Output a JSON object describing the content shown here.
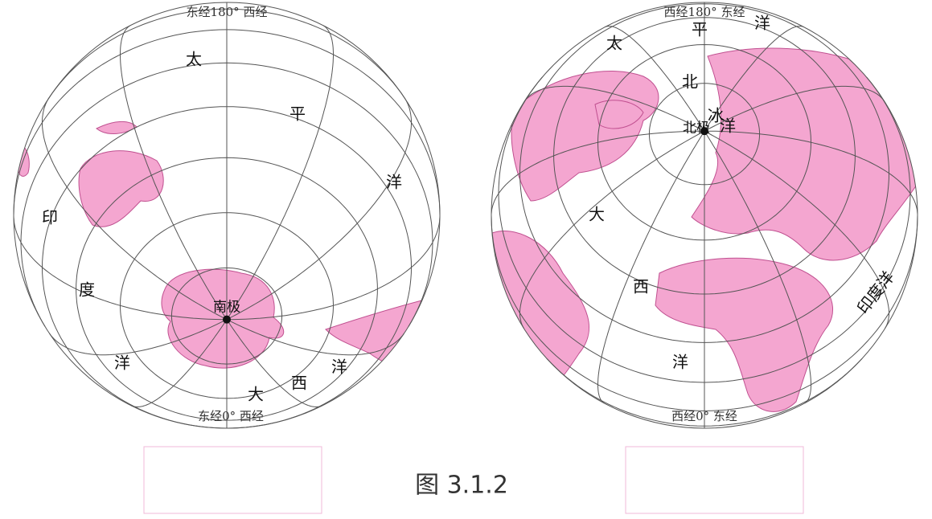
{
  "left_map": {
    "top_label": "东经180° 西经",
    "bottom_label": "东经0° 西经",
    "pole_label": "南极",
    "ocean_labels": [
      "太",
      "平",
      "洋",
      "印",
      "度",
      "洋",
      "大",
      "西",
      "洋"
    ]
  },
  "right_map": {
    "top_label": "西经180° 东经",
    "bottom_label": "西经0° 东经",
    "pole_label": "北极",
    "ocean_labels": [
      "太",
      "平",
      "洋",
      "北",
      "冰",
      "洋",
      "大",
      "西",
      "洋",
      "印度洋"
    ]
  },
  "caption": "图 3.1.2"
}
